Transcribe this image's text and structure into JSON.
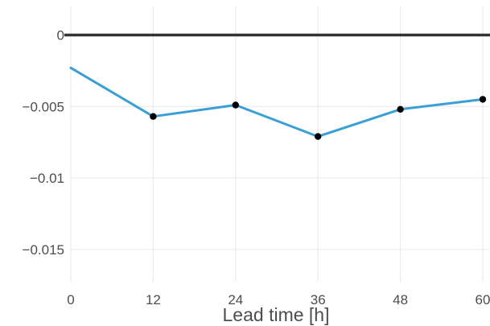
{
  "chart_data": {
    "type": "line",
    "title": "",
    "xlabel": "Lead time [h]",
    "ylabel": "",
    "x": [
      0,
      12,
      24,
      36,
      48,
      60
    ],
    "xticks": [
      0,
      12,
      24,
      36,
      48,
      60
    ],
    "xtick_labels": [
      "0",
      "12",
      "24",
      "36",
      "48",
      "60"
    ],
    "yticks": [
      0,
      -0.005,
      -0.01,
      -0.015
    ],
    "ytick_labels": [
      "0",
      "−0.005",
      "−0.01",
      "−0.015"
    ],
    "xlim": [
      0,
      60
    ],
    "ylim": [
      -0.0167,
      0.002
    ],
    "grid": true,
    "legend": "none",
    "reference_line": {
      "y": 0,
      "color": "#333333"
    },
    "series": [
      {
        "values": [
          -0.0023,
          -0.0057,
          -0.0049,
          -0.0071,
          -0.0052,
          -0.0045
        ],
        "color": "#3a9fd4",
        "marker_color": "#000000",
        "markers_from_index": 1
      }
    ]
  }
}
